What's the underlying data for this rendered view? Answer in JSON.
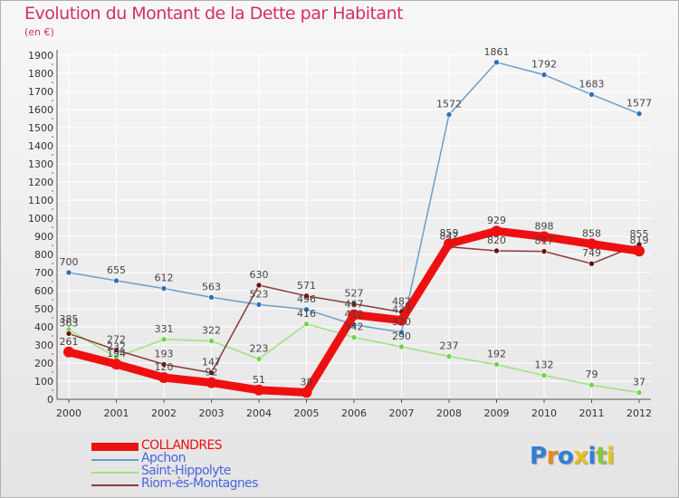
{
  "chart_data": {
    "type": "line",
    "title": "Evolution du Montant de la Dette par Habitant",
    "subtitle": "(en €)",
    "xlabel": "",
    "ylabel": "",
    "ylim": [
      0,
      1900
    ],
    "yticks": [
      0,
      100,
      200,
      300,
      400,
      500,
      600,
      700,
      800,
      900,
      1000,
      1100,
      1200,
      1300,
      1400,
      1500,
      1600,
      1700,
      1800,
      1900
    ],
    "categories": [
      "2000",
      "2001",
      "2002",
      "2003",
      "2004",
      "2005",
      "2006",
      "2007",
      "2008",
      "2009",
      "2010",
      "2011",
      "2012"
    ],
    "grid": true,
    "legend_position": "bottom-left",
    "series": [
      {
        "name": "Apchon",
        "color": "#6a9ecb",
        "marker": "#2e70b8",
        "values": [
          700,
          655,
          612,
          563,
          523,
          496,
          412,
          370,
          1572,
          1861,
          1792,
          1683,
          1577
        ]
      },
      {
        "name": "Saint-Hippolyte",
        "color": "#9ee27a",
        "marker": "#6fd34a",
        "values": [
          385,
          232,
          331,
          322,
          223,
          416,
          342,
          290,
          237,
          192,
          132,
          79,
          37
        ]
      },
      {
        "name": "Riom-ès-Montagnes",
        "color": "#8a3b3b",
        "marker": "#6a1010",
        "values": [
          363,
          272,
          193,
          147,
          630,
          571,
          527,
          482,
          842,
          820,
          817,
          749,
          855
        ]
      },
      {
        "name": "COLLANDRES",
        "color": "#ee1010",
        "marker": "#ee1010",
        "values": [
          261,
          194,
          120,
          92,
          51,
          38,
          467,
          437,
          859,
          929,
          898,
          858,
          819
        ]
      }
    ],
    "legend_order": [
      "COLLANDRES",
      "Apchon",
      "Saint-Hippolyte",
      "Riom-ès-Montagnes"
    ]
  },
  "logo": {
    "text": "Proxiti"
  }
}
